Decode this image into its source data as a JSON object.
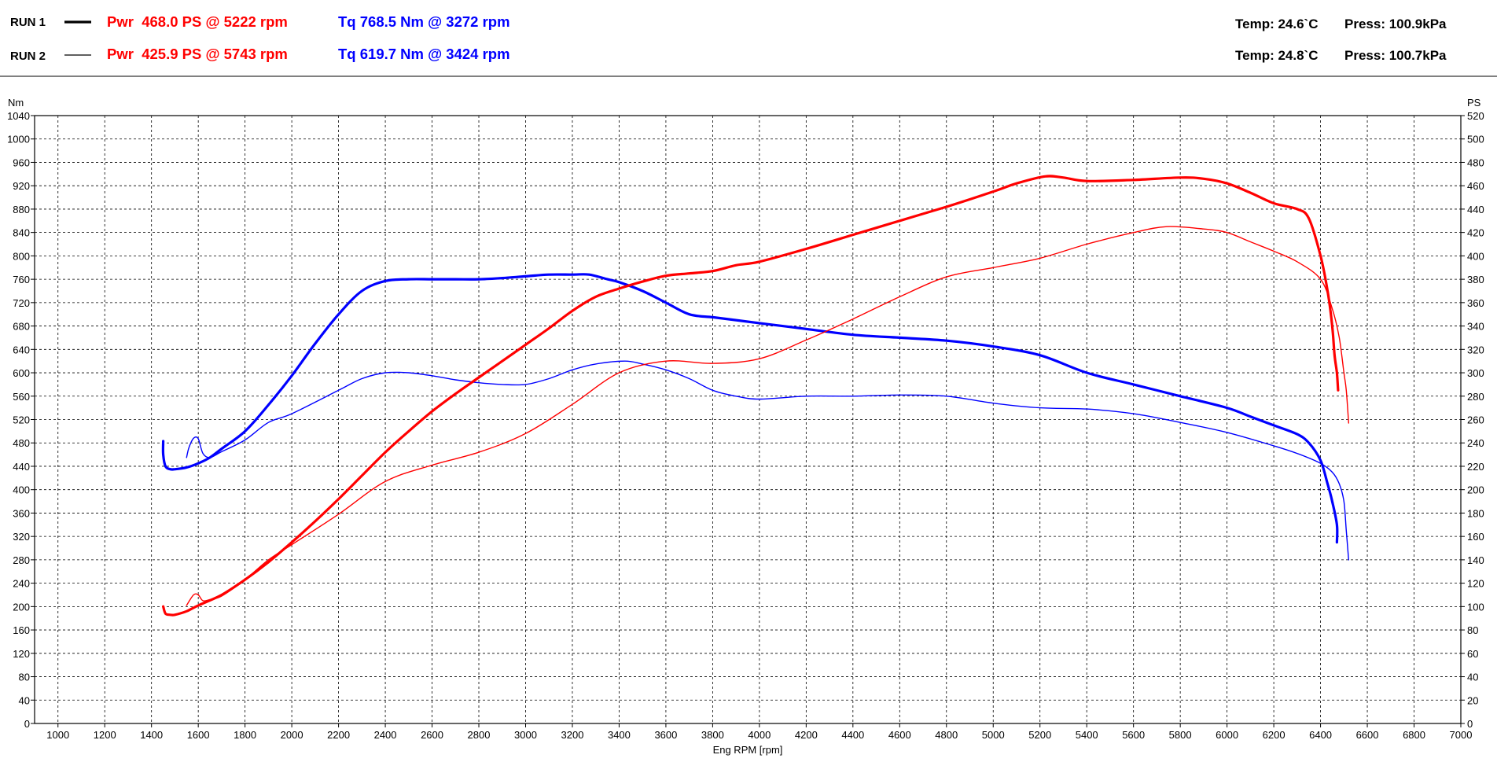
{
  "header": {
    "runs": [
      {
        "label": "RUN 1",
        "pwr": "Pwr  468.0 PS @ 5222 rpm",
        "tq": "Tq 768.5 Nm @ 3272 rpm",
        "temp": "Temp: 24.6`C",
        "press": "Press: 100.9kPa"
      },
      {
        "label": "RUN 2",
        "pwr": "Pwr  425.9 PS @ 5743 rpm",
        "tq": "Tq 619.7 Nm @ 3424 rpm",
        "temp": "Temp: 24.8`C",
        "press": "Press: 100.7kPa"
      }
    ]
  },
  "colors": {
    "power": "#ff0000",
    "torque": "#0000ff",
    "grid": "#000000"
  },
  "chart_data": {
    "type": "line",
    "title": "",
    "xlabel": "Eng RPM [rpm]",
    "ylabel_left": "Nm",
    "ylabel_right": "PS",
    "xlim": [
      900,
      7000
    ],
    "ylim_left": [
      0,
      1040
    ],
    "ylim_right": [
      0,
      520
    ],
    "x_ticks": [
      1000,
      1200,
      1400,
      1600,
      1800,
      2000,
      2200,
      2400,
      2600,
      2800,
      3000,
      3200,
      3400,
      3600,
      3800,
      4000,
      4200,
      4400,
      4600,
      4800,
      5000,
      5200,
      5400,
      5600,
      5800,
      6000,
      6200,
      6400,
      6600,
      6800,
      7000
    ],
    "y_ticks_left": [
      0,
      40,
      80,
      120,
      160,
      200,
      240,
      280,
      320,
      360,
      400,
      440,
      480,
      520,
      560,
      600,
      640,
      680,
      720,
      760,
      800,
      840,
      880,
      920,
      960,
      1000,
      1040
    ],
    "y_ticks_right": [
      0,
      20,
      40,
      60,
      80,
      100,
      120,
      140,
      160,
      180,
      200,
      220,
      240,
      260,
      280,
      300,
      320,
      340,
      360,
      380,
      400,
      420,
      440,
      460,
      480,
      500,
      520
    ],
    "grid": true,
    "series": [
      {
        "name": "RUN 1",
        "kind": "torque",
        "axis": "left",
        "width": 3.2,
        "x": [
          1450,
          1450,
          1460,
          1480,
          1500,
          1550,
          1600,
          1650,
          1700,
          1800,
          1900,
          2000,
          2100,
          2200,
          2300,
          2400,
          2500,
          2600,
          2700,
          2800,
          2900,
          3000,
          3100,
          3200,
          3272,
          3350,
          3400,
          3500,
          3600,
          3700,
          3800,
          3900,
          4000,
          4200,
          4400,
          4600,
          4800,
          5000,
          5200,
          5400,
          5600,
          5800,
          6000,
          6100,
          6200,
          6300,
          6350,
          6400,
          6430,
          6450,
          6470,
          6470
        ],
        "y": [
          483,
          460,
          440,
          435,
          435,
          438,
          445,
          455,
          470,
          500,
          545,
          595,
          650,
          700,
          740,
          757,
          760,
          760,
          760,
          760,
          762,
          765,
          768,
          768,
          768,
          760,
          755,
          740,
          720,
          700,
          695,
          690,
          685,
          675,
          665,
          660,
          655,
          645,
          630,
          600,
          580,
          560,
          540,
          525,
          510,
          495,
          480,
          450,
          410,
          380,
          340,
          310
        ]
      },
      {
        "name": "RUN 2",
        "kind": "torque",
        "axis": "left",
        "width": 1.4,
        "x": [
          1550,
          1560,
          1580,
          1600,
          1620,
          1650,
          1700,
          1800,
          1900,
          2000,
          2200,
          2300,
          2400,
          2500,
          2600,
          2700,
          2800,
          2900,
          3000,
          3100,
          3200,
          3300,
          3424,
          3500,
          3600,
          3700,
          3800,
          3900,
          4000,
          4200,
          4400,
          4600,
          4800,
          5000,
          5200,
          5400,
          5600,
          5800,
          6000,
          6200,
          6300,
          6400,
          6450,
          6480,
          6500,
          6510,
          6520
        ],
        "y": [
          455,
          472,
          488,
          487,
          462,
          455,
          465,
          485,
          515,
          530,
          570,
          590,
          600,
          600,
          595,
          588,
          583,
          580,
          580,
          590,
          605,
          615,
          620,
          615,
          605,
          590,
          570,
          560,
          555,
          560,
          560,
          562,
          560,
          548,
          540,
          538,
          530,
          515,
          498,
          475,
          462,
          445,
          430,
          410,
          380,
          330,
          280
        ]
      },
      {
        "name": "RUN 1",
        "kind": "power",
        "axis": "right",
        "width": 3.2,
        "x": [
          1450,
          1460,
          1480,
          1500,
          1550,
          1600,
          1700,
          1800,
          1900,
          2000,
          2100,
          2200,
          2300,
          2400,
          2500,
          2600,
          2700,
          2800,
          2900,
          3000,
          3100,
          3200,
          3300,
          3400,
          3500,
          3600,
          3700,
          3800,
          3900,
          4000,
          4200,
          4400,
          4600,
          4800,
          5000,
          5100,
          5222,
          5300,
          5400,
          5600,
          5800,
          5900,
          6000,
          6100,
          6200,
          6300,
          6350,
          6400,
          6430,
          6450,
          6460,
          6470,
          6475
        ],
        "y": [
          100,
          94,
          93,
          93,
          96,
          101,
          110,
          123,
          138,
          155,
          173,
          192,
          212,
          232,
          250,
          267,
          282,
          296,
          310,
          324,
          338,
          353,
          365,
          372,
          378,
          383,
          385,
          387,
          392,
          395,
          406,
          418,
          430,
          442,
          455,
          462,
          468,
          467,
          464,
          465,
          467,
          466,
          462,
          454,
          445,
          440,
          432,
          400,
          370,
          340,
          315,
          300,
          285
        ]
      },
      {
        "name": "RUN 2",
        "kind": "power",
        "axis": "right",
        "width": 1.4,
        "x": [
          1550,
          1580,
          1600,
          1620,
          1650,
          1700,
          1800,
          1900,
          2000,
          2200,
          2400,
          2600,
          2800,
          3000,
          3200,
          3400,
          3600,
          3800,
          4000,
          4200,
          4400,
          4600,
          4800,
          5000,
          5200,
          5400,
          5600,
          5743,
          5900,
          6000,
          6100,
          6200,
          6300,
          6400,
          6450,
          6480,
          6500,
          6510,
          6520
        ],
        "y": [
          101,
          110,
          110,
          105,
          106,
          109,
          123,
          140,
          153,
          179,
          207,
          221,
          232,
          248,
          273,
          300,
          310,
          308,
          312,
          328,
          346,
          365,
          382,
          390,
          398,
          410,
          420,
          425,
          423,
          420,
          412,
          404,
          395,
          380,
          355,
          330,
          300,
          285,
          257
        ]
      }
    ]
  }
}
